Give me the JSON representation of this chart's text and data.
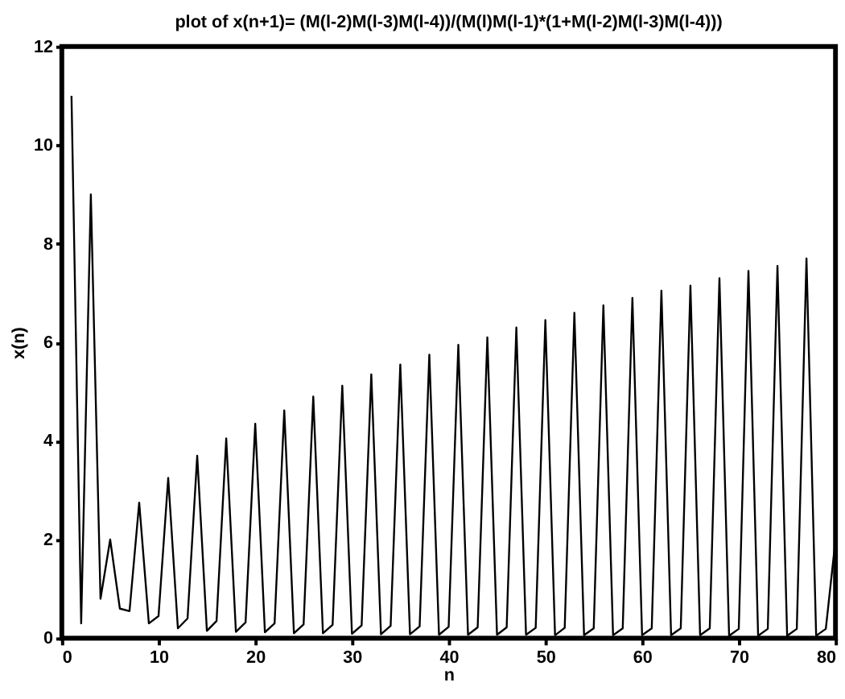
{
  "chart_data": {
    "type": "line",
    "title": "plot of x(n+1)= (M(l-2)M(l-3)M(l-4))/(M(l)M(l-1)*(1+M(l-2)M(l-3)M(l-4)))",
    "xlabel": "n",
    "ylabel": "x(n)",
    "x": [
      1,
      2,
      3,
      4,
      5,
      6,
      7,
      8,
      9,
      10,
      11,
      12,
      13,
      14,
      15,
      16,
      17,
      18,
      19,
      20,
      21,
      22,
      23,
      24,
      25,
      26,
      27,
      28,
      29,
      30,
      31,
      32,
      33,
      34,
      35,
      36,
      37,
      38,
      39,
      40,
      41,
      42,
      43,
      44,
      45,
      46,
      47,
      48,
      49,
      50,
      51,
      52,
      53,
      54,
      55,
      56,
      57,
      58,
      59,
      60,
      61,
      62,
      63,
      64,
      65,
      66,
      67,
      68,
      69,
      70,
      71,
      72,
      73,
      74,
      75,
      76,
      77,
      78,
      79,
      80
    ],
    "series": [
      {
        "color": "#000000",
        "values": [
          11,
          0.3,
          9,
          0.8,
          2,
          0.6,
          0.55,
          2.75,
          0.3,
          0.45,
          3.25,
          0.2,
          0.4,
          3.7,
          0.15,
          0.35,
          4.05,
          0.13,
          0.32,
          4.35,
          0.12,
          0.3,
          4.62,
          0.1,
          0.28,
          4.9,
          0.1,
          0.27,
          5.12,
          0.09,
          0.26,
          5.35,
          0.08,
          0.25,
          5.55,
          0.08,
          0.24,
          5.75,
          0.07,
          0.23,
          5.95,
          0.07,
          0.22,
          6.1,
          0.07,
          0.22,
          6.3,
          0.07,
          0.21,
          6.45,
          0.06,
          0.21,
          6.6,
          0.06,
          0.2,
          6.75,
          0.06,
          0.2,
          6.9,
          0.06,
          0.2,
          7.05,
          0.06,
          0.2,
          7.15,
          0.06,
          0.2,
          7.3,
          0.05,
          0.19,
          7.45,
          0.05,
          0.19,
          7.55,
          0.05,
          0.19,
          7.7,
          0.05,
          0.19,
          2
        ]
      }
    ],
    "xlim": [
      0,
      80
    ],
    "xticks": [
      0,
      10,
      20,
      30,
      40,
      50,
      60,
      70,
      80
    ],
    "ylim": [
      0,
      12
    ],
    "yticks": [
      0,
      2,
      4,
      6,
      8,
      10,
      12
    ],
    "grid": false,
    "marker": "none",
    "line_style": "solid"
  }
}
